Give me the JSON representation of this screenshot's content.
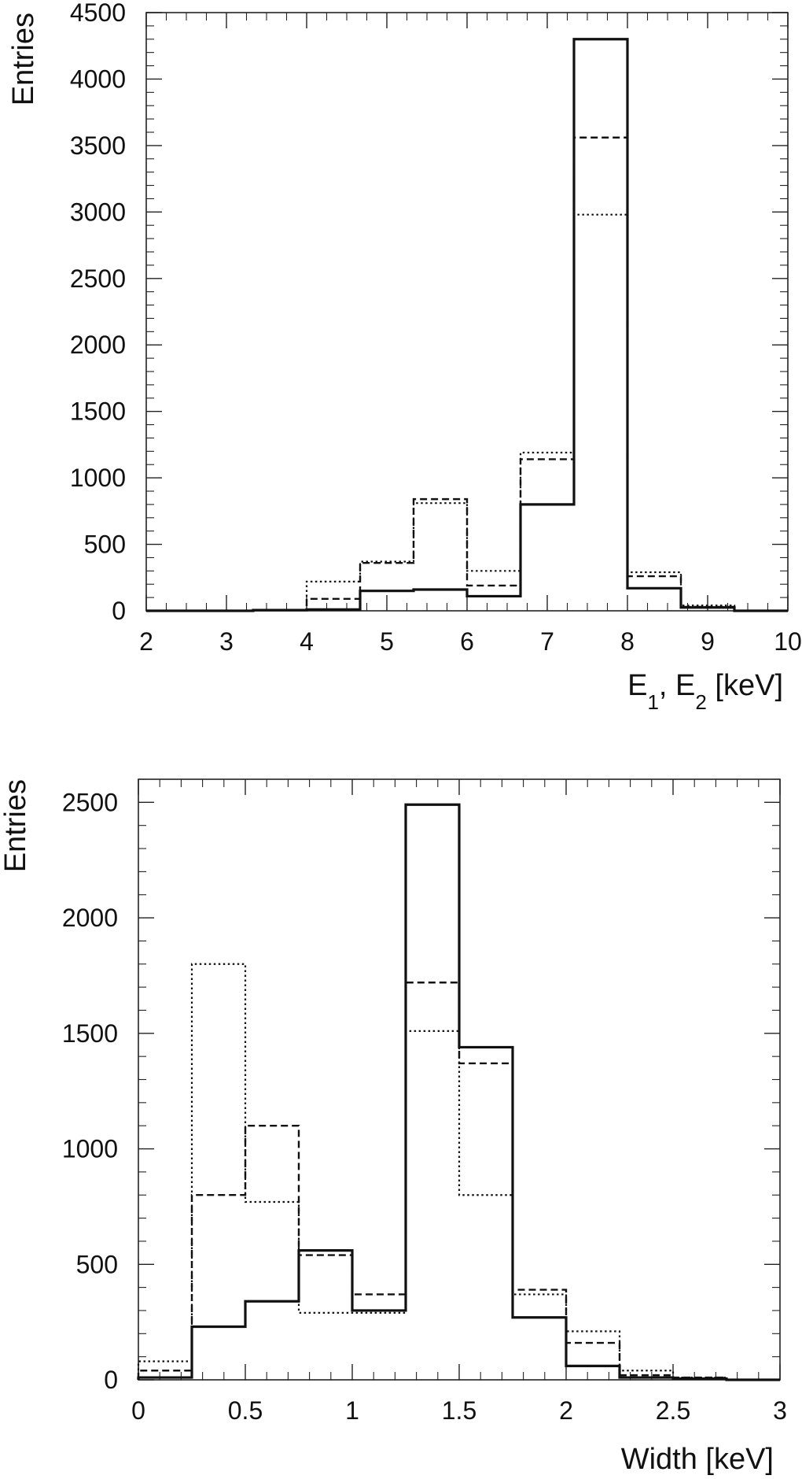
{
  "chart_data": [
    {
      "type": "histogram",
      "ylabel": "Entries",
      "xlabel_parts": {
        "e": "E",
        "sub1": "1",
        "comma": ", E",
        "sub2": "2",
        "unit": " [keV]"
      },
      "xlim": [
        2,
        10
      ],
      "ylim": [
        0,
        4500
      ],
      "xticks": [
        2,
        3,
        4,
        5,
        6,
        7,
        8,
        9,
        10
      ],
      "yticks": [
        0,
        500,
        1000,
        1500,
        2000,
        2500,
        3000,
        3500,
        4000,
        4500
      ],
      "bin_edges": [
        2.0,
        2.6667,
        3.3333,
        4.0,
        4.6667,
        5.3333,
        6.0,
        6.6667,
        7.3333,
        8.0,
        8.6667,
        9.3333,
        10.0
      ],
      "series": [
        {
          "style": "solid",
          "values": [
            0,
            0,
            5,
            10,
            150,
            160,
            110,
            800,
            4300,
            170,
            25,
            0
          ]
        },
        {
          "style": "dashed",
          "values": [
            0,
            0,
            5,
            90,
            360,
            840,
            190,
            1140,
            3560,
            260,
            30,
            0
          ]
        },
        {
          "style": "dotted",
          "values": [
            0,
            0,
            5,
            220,
            370,
            810,
            300,
            1190,
            2980,
            290,
            40,
            0
          ]
        }
      ]
    },
    {
      "type": "histogram",
      "ylabel": "Entries",
      "xlabel": "Width [keV]",
      "xlim": [
        0,
        3
      ],
      "ylim": [
        0,
        2600
      ],
      "xticks": [
        0,
        0.5,
        1,
        1.5,
        2,
        2.5,
        3
      ],
      "yticks": [
        0,
        500,
        1000,
        1500,
        2000,
        2500
      ],
      "bin_edges": [
        0,
        0.25,
        0.5,
        0.75,
        1.0,
        1.25,
        1.5,
        1.75,
        2.0,
        2.25,
        2.5,
        2.75,
        3.0
      ],
      "series": [
        {
          "style": "solid",
          "values": [
            10,
            230,
            340,
            560,
            300,
            2490,
            1440,
            270,
            60,
            10,
            5,
            0
          ]
        },
        {
          "style": "dashed",
          "values": [
            40,
            800,
            1100,
            540,
            370,
            1720,
            1370,
            390,
            160,
            20,
            10,
            0
          ]
        },
        {
          "style": "dotted",
          "values": [
            80,
            1800,
            770,
            290,
            290,
            1510,
            800,
            370,
            210,
            40,
            10,
            0
          ]
        }
      ]
    }
  ]
}
